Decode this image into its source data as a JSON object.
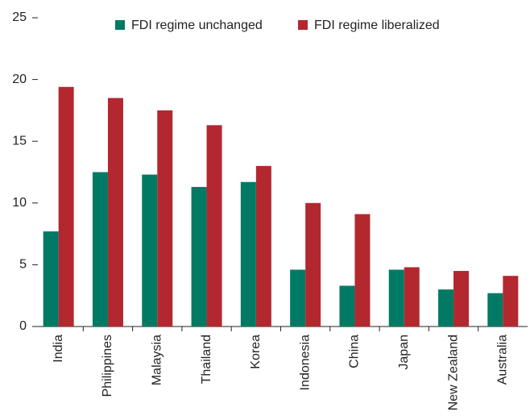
{
  "chart_data": {
    "type": "bar",
    "categories": [
      "India",
      "Philippines",
      "Malaysia",
      "Thailand",
      "Korea",
      "Indonesia",
      "China",
      "Japan",
      "New Zealand",
      "Australia"
    ],
    "series": [
      {
        "name": "FDI regime unchanged",
        "color": "#007a64",
        "values": [
          7.7,
          12.5,
          12.3,
          11.3,
          11.7,
          4.6,
          3.3,
          4.6,
          3.0,
          2.7
        ]
      },
      {
        "name": "FDI regime liberalized",
        "color": "#b3282f",
        "values": [
          19.4,
          18.5,
          17.5,
          16.3,
          13.0,
          10.0,
          9.1,
          4.8,
          4.5,
          4.1
        ]
      }
    ],
    "ylim": [
      0,
      25
    ],
    "yticks": [
      0,
      5,
      10,
      15,
      20,
      25
    ],
    "legend": "top"
  }
}
